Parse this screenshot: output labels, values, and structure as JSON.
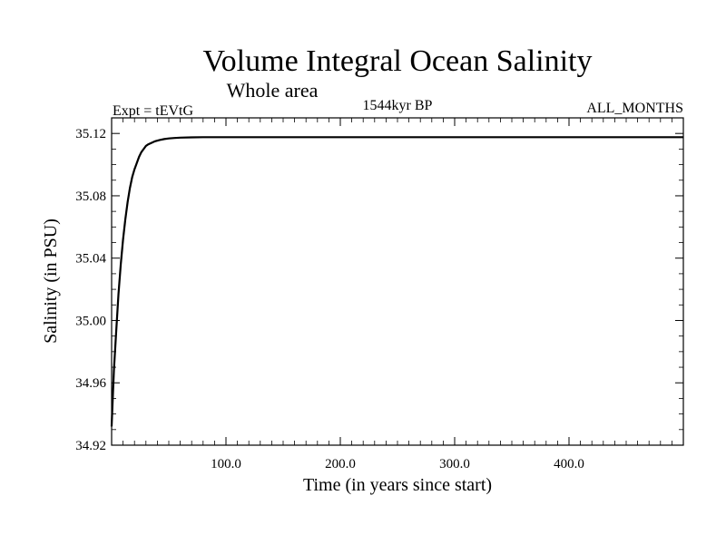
{
  "chart_data": {
    "type": "line",
    "title": "Volume Integral Ocean Salinity",
    "subtitle": "Whole area",
    "header_left": "Expt = tEVtG",
    "header_center": "1544kyr BP",
    "header_right": "ALL_MONTHS",
    "xlabel": "Time (in years since start)",
    "ylabel": "Salinity (in PSU)",
    "xlim": [
      0,
      500
    ],
    "ylim": [
      34.92,
      35.13
    ],
    "x_ticks": [
      100,
      200,
      300,
      400
    ],
    "x_tick_labels": [
      "100.0",
      "200.0",
      "300.0",
      "400.0"
    ],
    "y_ticks": [
      34.92,
      34.96,
      35.0,
      35.04,
      35.08,
      35.12
    ],
    "y_tick_labels": [
      "34.92",
      "34.96",
      "35.00",
      "35.04",
      "35.08",
      "35.12"
    ],
    "grid": false,
    "series": [
      {
        "x": [
          0,
          2,
          4,
          6,
          8,
          10,
          12,
          14,
          16,
          18,
          20,
          22,
          24,
          26,
          28,
          30,
          32,
          35,
          38,
          42,
          46,
          50,
          55,
          60,
          70,
          80,
          100,
          150,
          200,
          250,
          300,
          350,
          400,
          450,
          500
        ],
        "y": [
          34.932,
          34.968,
          34.993,
          35.017,
          35.036,
          35.052,
          35.065,
          35.076,
          35.085,
          35.092,
          35.097,
          35.101,
          35.105,
          35.108,
          35.11,
          35.112,
          35.113,
          35.114,
          35.115,
          35.1158,
          35.1164,
          35.1168,
          35.1171,
          35.1173,
          35.1175,
          35.1176,
          35.1176,
          35.1176,
          35.1176,
          35.1176,
          35.1176,
          35.1176,
          35.1176,
          35.1176,
          35.1176
        ],
        "color": "#000000"
      }
    ]
  }
}
